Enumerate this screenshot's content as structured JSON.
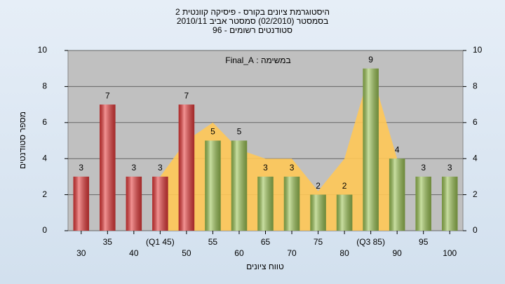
{
  "chart_data": {
    "type": "bar",
    "title": "היסטוגרמת ציונים בקורס - פיסיקה קוונטית 2",
    "subtitle": "בסמסטר  (02/2010)  סמסטר אביב 2010/11",
    "subtitle2": "סטודנטים רשומים - 96",
    "annotation": "במשימה : Final_A",
    "y_label": "מספר סטודנטים",
    "x_label": "טווח ציונים",
    "categories": [
      "30",
      "35",
      "40",
      "(Q1 45)",
      "50",
      "55",
      "60",
      "65",
      "70",
      "75",
      "80",
      "(Q3 85)",
      "90",
      "95",
      "100"
    ],
    "values": [
      3,
      7,
      3,
      3,
      7,
      5,
      5,
      3,
      3,
      2,
      2,
      9,
      4,
      3,
      3
    ],
    "colors": [
      "#e83a3a",
      "#e83a3a",
      "#e83a3a",
      "#e83a3a",
      "#e83a3a",
      "#9cc454",
      "#9cc454",
      "#9cc454",
      "#9cc454",
      "#9cc454",
      "#9cc454",
      "#9cc454",
      "#9cc454",
      "#9cc454",
      "#9cc454"
    ],
    "series": [
      {
        "color": "#ffc857",
        "values": [
          null,
          null,
          null,
          3,
          5,
          6,
          4.5,
          4,
          4,
          2.2,
          4,
          9,
          4,
          null,
          null
        ]
      }
    ],
    "ylim": [
      0,
      10
    ],
    "yticks": [
      0,
      2,
      4,
      6,
      8,
      10
    ],
    "y2lim": [
      0,
      10
    ],
    "y2ticks": [
      0,
      2,
      4,
      6,
      8,
      10
    ],
    "grid": true
  }
}
